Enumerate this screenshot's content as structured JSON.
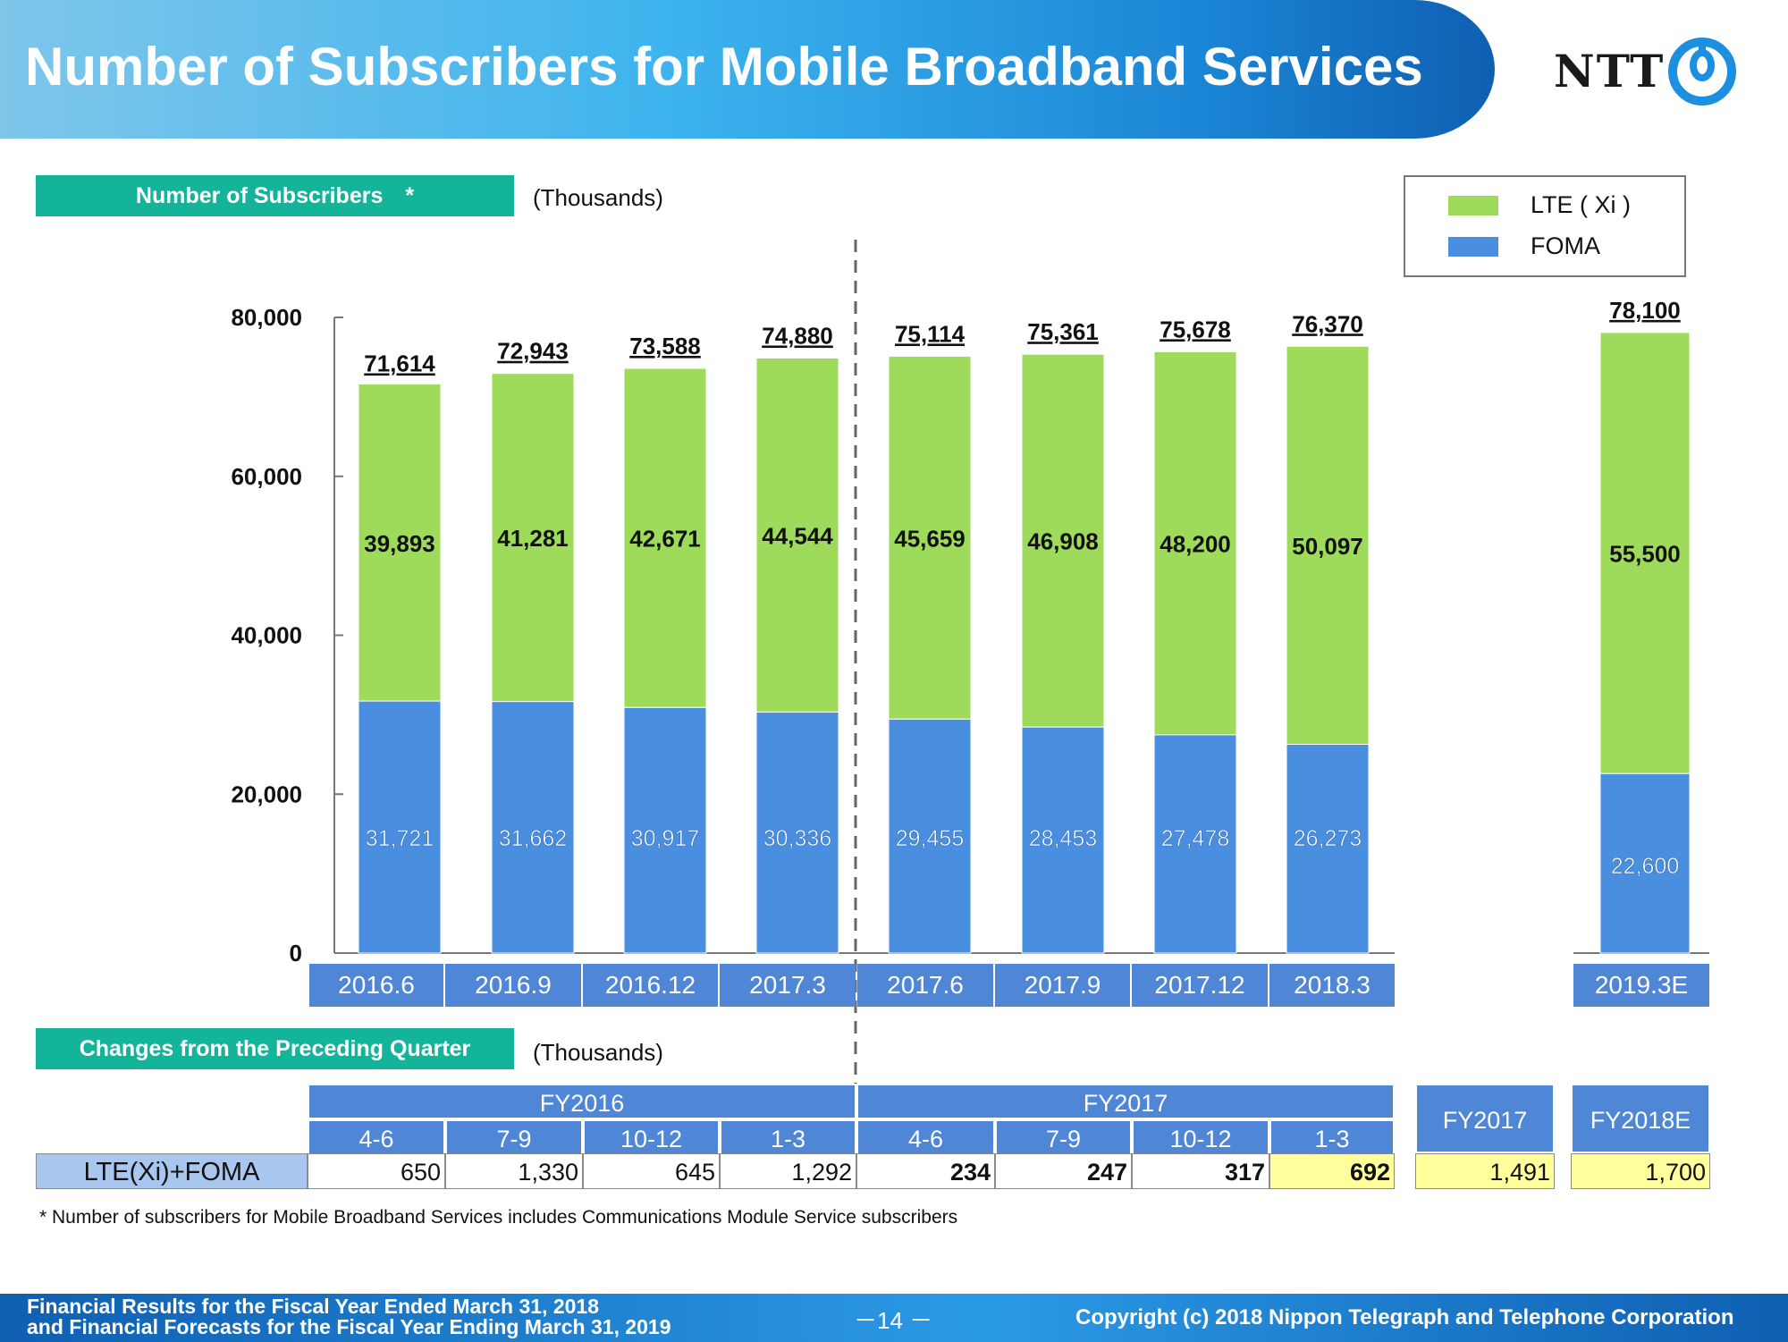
{
  "header": {
    "title": "Number of Subscribers for Mobile Broadband Services",
    "logo_text": "NTT"
  },
  "subscribers_section": {
    "tag": "Number of Subscribers　*",
    "unit": "(Thousands)"
  },
  "legend": {
    "items": [
      {
        "label": "LTE ( Xi )",
        "color": "#9fdb5a"
      },
      {
        "label": "FOMA",
        "color": "#4a8ee0"
      }
    ]
  },
  "chart_data": {
    "type": "bar",
    "stacked": true,
    "categories": [
      "2016.6",
      "2016.9",
      "2016.12",
      "2017.3",
      "2017.6",
      "2017.9",
      "2017.12",
      "2018.3",
      "2019.3E"
    ],
    "series": [
      {
        "name": "FOMA",
        "color": "#4a8ee0",
        "values": [
          31721,
          31662,
          30917,
          30336,
          29455,
          28453,
          27478,
          26273,
          22600
        ]
      },
      {
        "name": "LTE ( Xi )",
        "color": "#9fdb5a",
        "values": [
          39893,
          41281,
          42671,
          44544,
          45659,
          46908,
          48200,
          50097,
          55500
        ]
      }
    ],
    "totals": [
      71614,
      72943,
      73588,
      74880,
      75114,
      75361,
      75678,
      76370,
      78100
    ],
    "value_labels": {
      "foma": [
        "31,721",
        "31,662",
        "30,917",
        "30,336",
        "29,455",
        "28,453",
        "27,478",
        "26,273",
        "22,600"
      ],
      "lte": [
        "39,893",
        "41,281",
        "42,671",
        "44,544",
        "45,659",
        "46,908",
        "48,200",
        "50,097",
        "55,500"
      ],
      "totals": [
        "71,614",
        "72,943",
        "73,588",
        "74,880",
        "75,114",
        "75,361",
        "75,678",
        "76,370",
        "78,100"
      ]
    },
    "yticks": [
      "0",
      "20,000",
      "40,000",
      "60,000",
      "80,000"
    ],
    "ylim": [
      0,
      80000
    ],
    "grid": false,
    "legend_position": "top-right"
  },
  "changes_section": {
    "tag": "Changes from the Preceding Quarter",
    "unit": "(Thousands)",
    "fy_groups": [
      "FY2016",
      "FY2017"
    ],
    "quarters": [
      "4-6",
      "7-9",
      "10-12",
      "1-3",
      "4-6",
      "7-9",
      "10-12",
      "1-3"
    ],
    "row_label": "LTE(Xi)+FOMA",
    "values": [
      "650",
      "1,330",
      "645",
      "1,292",
      "234",
      "247",
      "317",
      "692"
    ],
    "annual_headers": [
      "FY2017",
      "FY2018E"
    ],
    "annual_values": [
      "1,491",
      "1,700"
    ]
  },
  "footnote": "* Number of subscribers for Mobile Broadband Services includes Communications Module Service subscribers",
  "footer": {
    "line1": "Financial Results for the Fiscal Year Ended March 31, 2018",
    "line2": "and Financial Forecasts for the Fiscal Year Ending March 31, 2019",
    "page": "－14 －",
    "copyright": "Copyright (c) 2018  Nippon Telegraph and Telephone Corporation"
  }
}
